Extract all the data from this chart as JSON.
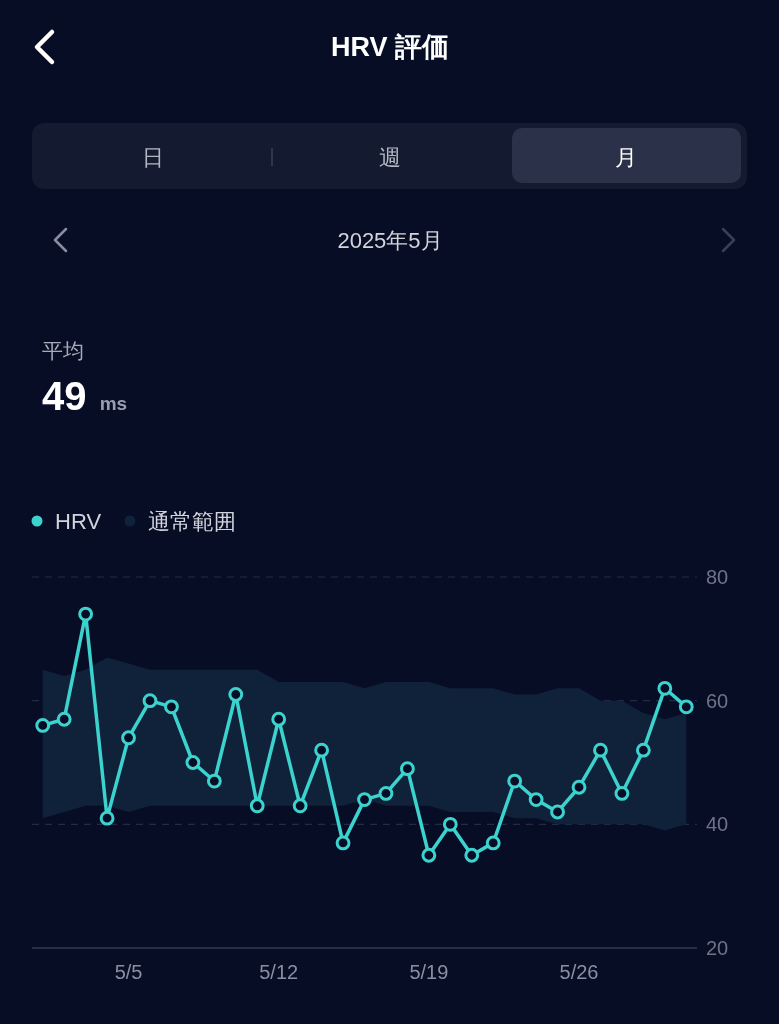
{
  "chart_data": {
    "type": "line",
    "title": "HRV 評価",
    "subtitle": "2025年5月",
    "annotations": [
      "日",
      "週",
      "月",
      "平均",
      "49",
      "ms"
    ],
    "categories": [
      null,
      null,
      null,
      null,
      "5/5",
      null,
      null,
      null,
      null,
      null,
      null,
      "5/12",
      null,
      null,
      null,
      null,
      null,
      null,
      "5/19",
      null,
      null,
      null,
      null,
      null,
      null,
      "5/26",
      null,
      null,
      null,
      null,
      null
    ],
    "series": [
      {
        "name": "HRV",
        "type": "line",
        "color": "#3cd3cf",
        "marker": "circle",
        "values": [
          56,
          57,
          74,
          41,
          54,
          60,
          59,
          50,
          47,
          61,
          43,
          57,
          43,
          52,
          37,
          44,
          45,
          49,
          35,
          40,
          35,
          37,
          47,
          44,
          42,
          46,
          52,
          45,
          52,
          62,
          59
        ]
      },
      {
        "name": "通常範囲",
        "type": "area",
        "color": "#10213a",
        "values": [
          null,
          null,
          null,
          null,
          null,
          null,
          null,
          null,
          null,
          null,
          null,
          null,
          null,
          null,
          null,
          null,
          null,
          null,
          null,
          null,
          null,
          null,
          null,
          null,
          null,
          null,
          null,
          null,
          null,
          null,
          null
        ],
        "lower": [
          41,
          42,
          43,
          43,
          42,
          43,
          43,
          43,
          43,
          43,
          43,
          43,
          43,
          43,
          43,
          44,
          43,
          43,
          43,
          42,
          42,
          42,
          41,
          41,
          40,
          40,
          40,
          40,
          40,
          39,
          40
        ],
        "upper": [
          65,
          64,
          65,
          67,
          66,
          65,
          65,
          65,
          65,
          65,
          65,
          63,
          63,
          63,
          63,
          62,
          63,
          63,
          63,
          62,
          62,
          62,
          61,
          61,
          62,
          62,
          60,
          60,
          58,
          57,
          58
        ]
      }
    ],
    "ylim": [
      20,
      80
    ],
    "yticks": [
      20,
      40,
      60,
      80
    ],
    "grid": "y",
    "legend": "top left"
  }
}
